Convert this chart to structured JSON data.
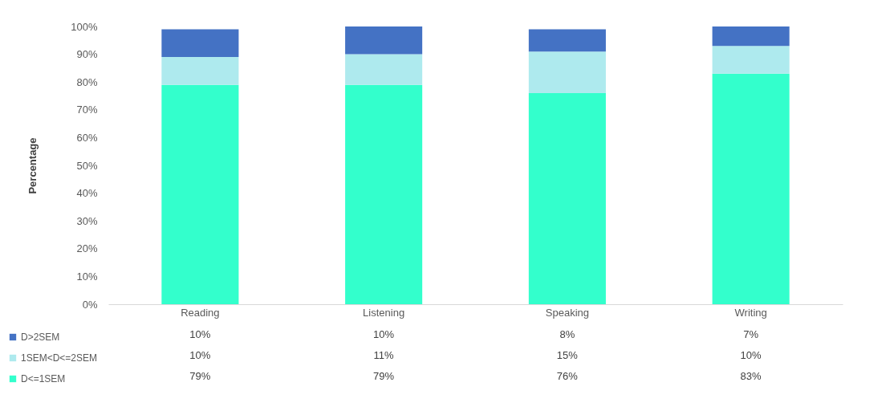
{
  "chart_data": {
    "type": "bar",
    "stacked": true,
    "ylabel": "Percentage",
    "categories": [
      "Reading",
      "Listening",
      "Speaking",
      "Writing"
    ],
    "series": [
      {
        "name": "D<=1SEM",
        "color": "#33ffcc",
        "values": [
          79,
          79,
          76,
          83
        ],
        "value_labels": [
          "79%",
          "79%",
          "76%",
          "83%"
        ]
      },
      {
        "name": "1SEM<D<=2SEM",
        "color": "#aeeaee",
        "values": [
          10,
          11,
          15,
          10
        ],
        "value_labels": [
          "10%",
          "11%",
          "15%",
          "10%"
        ]
      },
      {
        "name": "D>2SEM",
        "color": "#4472c4",
        "values": [
          10,
          10,
          8,
          7
        ],
        "value_labels": [
          "10%",
          "10%",
          "8%",
          "7%"
        ]
      }
    ],
    "ylim": [
      0,
      100
    ],
    "yticks": [
      {
        "value": 0,
        "label": "0%"
      },
      {
        "value": 10,
        "label": "10%"
      },
      {
        "value": 20,
        "label": "20%"
      },
      {
        "value": 30,
        "label": "30%"
      },
      {
        "value": 40,
        "label": "40%"
      },
      {
        "value": 50,
        "label": "50%"
      },
      {
        "value": 60,
        "label": "60%"
      },
      {
        "value": 70,
        "label": "70%"
      },
      {
        "value": 80,
        "label": "80%"
      },
      {
        "value": 90,
        "label": "90%"
      },
      {
        "value": 100,
        "label": "100%"
      }
    ],
    "grid": false,
    "legend": "bottom left"
  }
}
